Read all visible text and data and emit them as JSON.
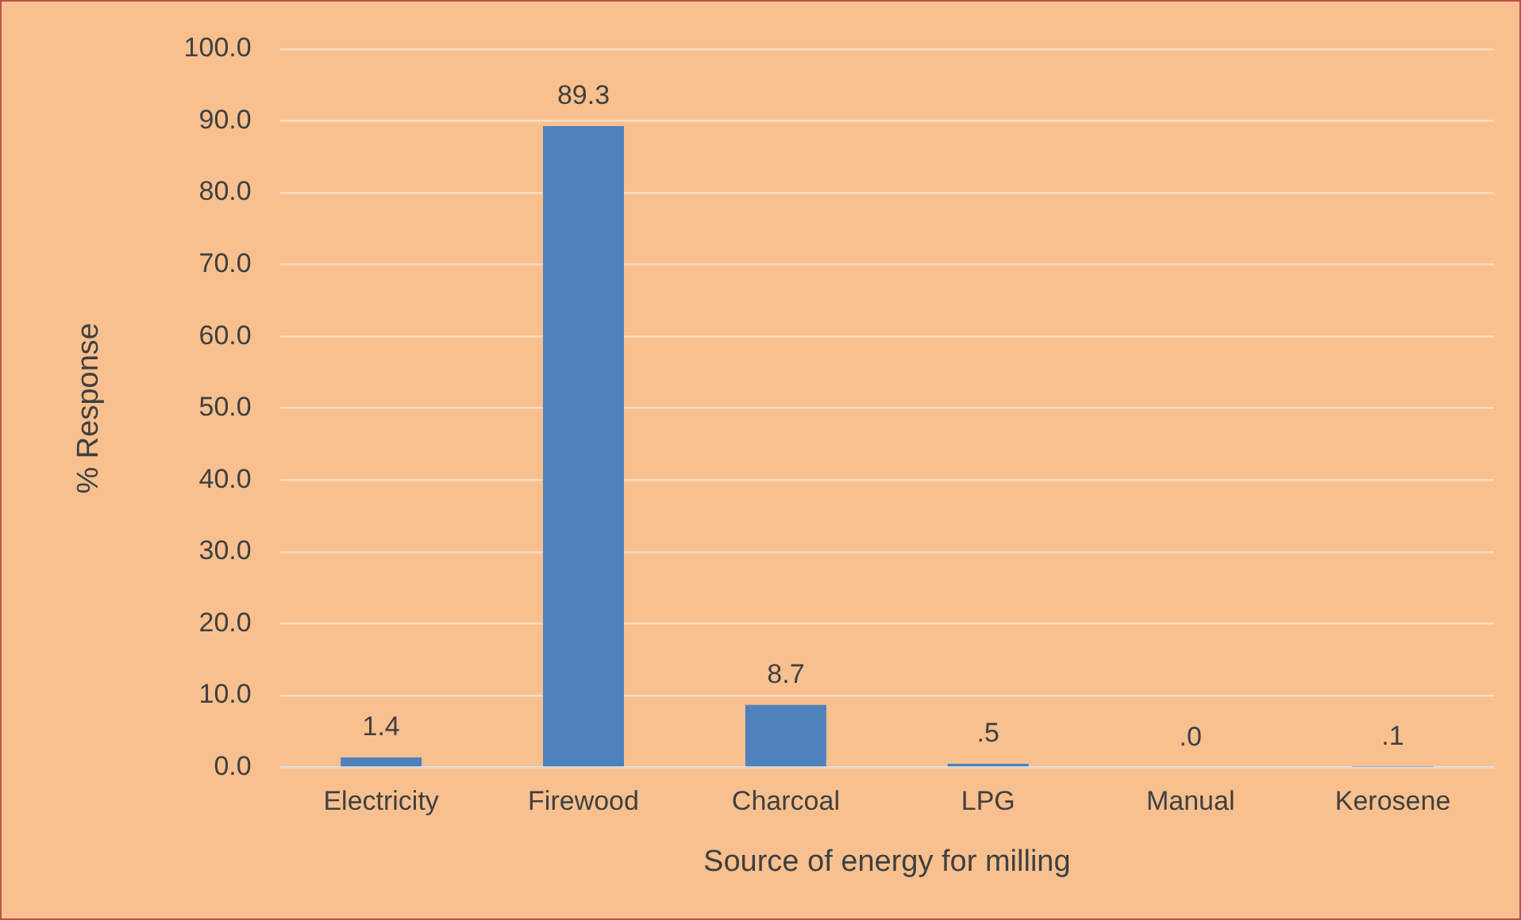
{
  "chart_data": {
    "type": "bar",
    "xlabel": "Source of energy for milling",
    "ylabel": "% Response",
    "categories": [
      "Electricity",
      "Firewood",
      "Charcoal",
      "LPG",
      "Manual",
      "Kerosene"
    ],
    "values": [
      1.4,
      89.3,
      8.7,
      0.5,
      0.0,
      0.1
    ],
    "value_labels": [
      "1.4",
      "89.3",
      "8.7",
      ".5",
      ".0",
      ".1"
    ],
    "color": "#4f81bd",
    "ylim": [
      0,
      100
    ],
    "yticks": [
      {
        "value": 0,
        "label": "0.0"
      },
      {
        "value": 10,
        "label": "10.0"
      },
      {
        "value": 20,
        "label": "20.0"
      },
      {
        "value": 30,
        "label": "30.0"
      },
      {
        "value": 40,
        "label": "40.0"
      },
      {
        "value": 50,
        "label": "50.0"
      },
      {
        "value": 60,
        "label": "60.0"
      },
      {
        "value": 70,
        "label": "70.0"
      },
      {
        "value": 80,
        "label": "80.0"
      },
      {
        "value": 90,
        "label": "90.0"
      },
      {
        "value": 100,
        "label": "100.0"
      }
    ],
    "grid": "y",
    "legend": false
  }
}
